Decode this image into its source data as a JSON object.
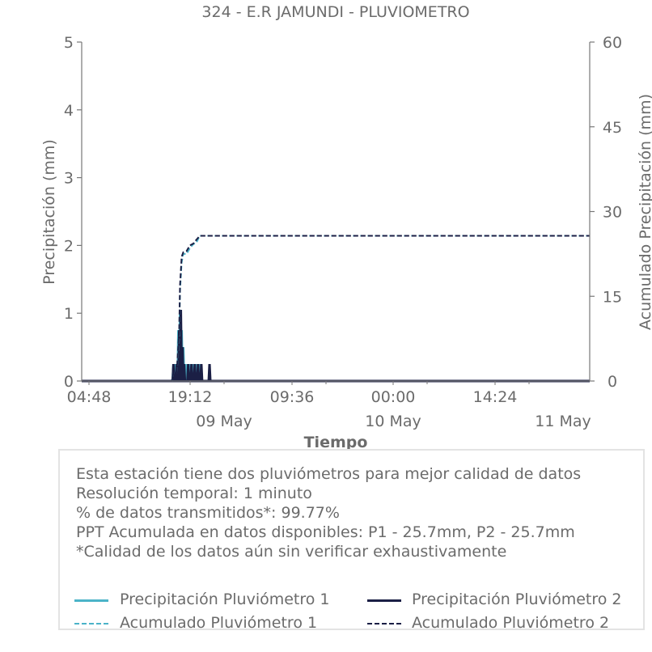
{
  "chart_data": {
    "type": "line",
    "title": "324 - E.R JAMUNDI - PLUVIOMETRO",
    "xlabel": "Tiempo",
    "ylabel": "Precipitación (mm)",
    "y2label": "Acumulado Precipitación (mm)",
    "ylim": [
      0,
      5
    ],
    "y2lim": [
      0,
      60
    ],
    "xlim": [
      0,
      3100
    ],
    "y_ticks": [
      "0",
      "1",
      "2",
      "3",
      "4",
      "5"
    ],
    "y2_ticks": [
      "0",
      "15",
      "30",
      "45",
      "60"
    ],
    "x_ticks": [
      {
        "label": "04:48",
        "t": 0
      },
      {
        "label": "19:12",
        "t": 864
      },
      {
        "label": "09:36",
        "t": 1728
      },
      {
        "label": "00:00",
        "t": 2592
      },
      {
        "label": "14:24",
        "t": 3456
      }
    ],
    "x_date_ticks": [
      {
        "label": "09 May",
        "t": 1152
      },
      {
        "label": "10 May",
        "t": 2592
      },
      {
        "label": "11 May",
        "t": 4032
      }
    ],
    "x_unit": "minutes from 04:48",
    "grid": false,
    "series": [
      {
        "name": "Precipitación Pluviómetro 1",
        "color": "#4bb3c8",
        "style": "solid",
        "axis": "left",
        "x": [
          560,
          570,
          590,
          600,
          610,
          620,
          640,
          660,
          680,
          700,
          720
        ],
        "values": [
          0.25,
          0.25,
          0.75,
          1.0,
          0.75,
          0.5,
          0.25,
          0.25,
          0.25,
          0.25,
          0.25
        ]
      },
      {
        "name": "Precipitación Pluviómetro 2",
        "color": "#1b1f45",
        "style": "solid",
        "axis": "left",
        "x": [
          560,
          580,
          595,
          605,
          615,
          625,
          650,
          670,
          690,
          710,
          730,
          780
        ],
        "values": [
          0.25,
          0.25,
          0.75,
          1.05,
          0.5,
          0.25,
          0.25,
          0.25,
          0.25,
          0.25,
          0.25,
          0.25
        ]
      },
      {
        "name": "Acumulado Pluviómetro 1",
        "color": "#4bb3c8",
        "style": "dashed",
        "axis": "right",
        "x": [
          0,
          550,
          560,
          580,
          595,
          600,
          610,
          620,
          640,
          660,
          680,
          700,
          720,
          760,
          3100
        ],
        "values": [
          0,
          0,
          1.5,
          1.5,
          8,
          16,
          21,
          22.5,
          22.5,
          23.5,
          24.2,
          24.5,
          25.7,
          25.7,
          25.7
        ]
      },
      {
        "name": "Acumulado Pluviómetro 2",
        "color": "#1b1f45",
        "style": "dashed",
        "axis": "right",
        "x": [
          0,
          550,
          560,
          580,
          595,
          600,
          610,
          620,
          640,
          660,
          680,
          700,
          720,
          760,
          3100
        ],
        "values": [
          0,
          0,
          1.5,
          1.5,
          9,
          17,
          22,
          22.8,
          23,
          24,
          24.3,
          25,
          25.7,
          25.7,
          25.7
        ]
      }
    ],
    "legend_placement": "bottom"
  },
  "info": {
    "lines": [
      "Esta estación tiene dos pluviómetros para mejor calidad de datos",
      "Resolución temporal: 1 minuto",
      "% de datos transmitidos*: 99.77%",
      "PPT Acumulada en datos disponibles: P1 - 25.7mm, P2 - 25.7mm",
      "*Calidad de los datos aún sin verificar exhaustivamente"
    ]
  },
  "legend": [
    {
      "label": "Precipitación Pluviómetro 1",
      "color": "#4bb3c8",
      "style": "solid"
    },
    {
      "label": "Precipitación Pluviómetro 2",
      "color": "#1b1f45",
      "style": "solid"
    },
    {
      "label": "Acumulado Pluviómetro 1",
      "color": "#4bb3c8",
      "style": "dashed"
    },
    {
      "label": "Acumulado Pluviómetro 2",
      "color": "#1b1f45",
      "style": "dashed"
    }
  ]
}
